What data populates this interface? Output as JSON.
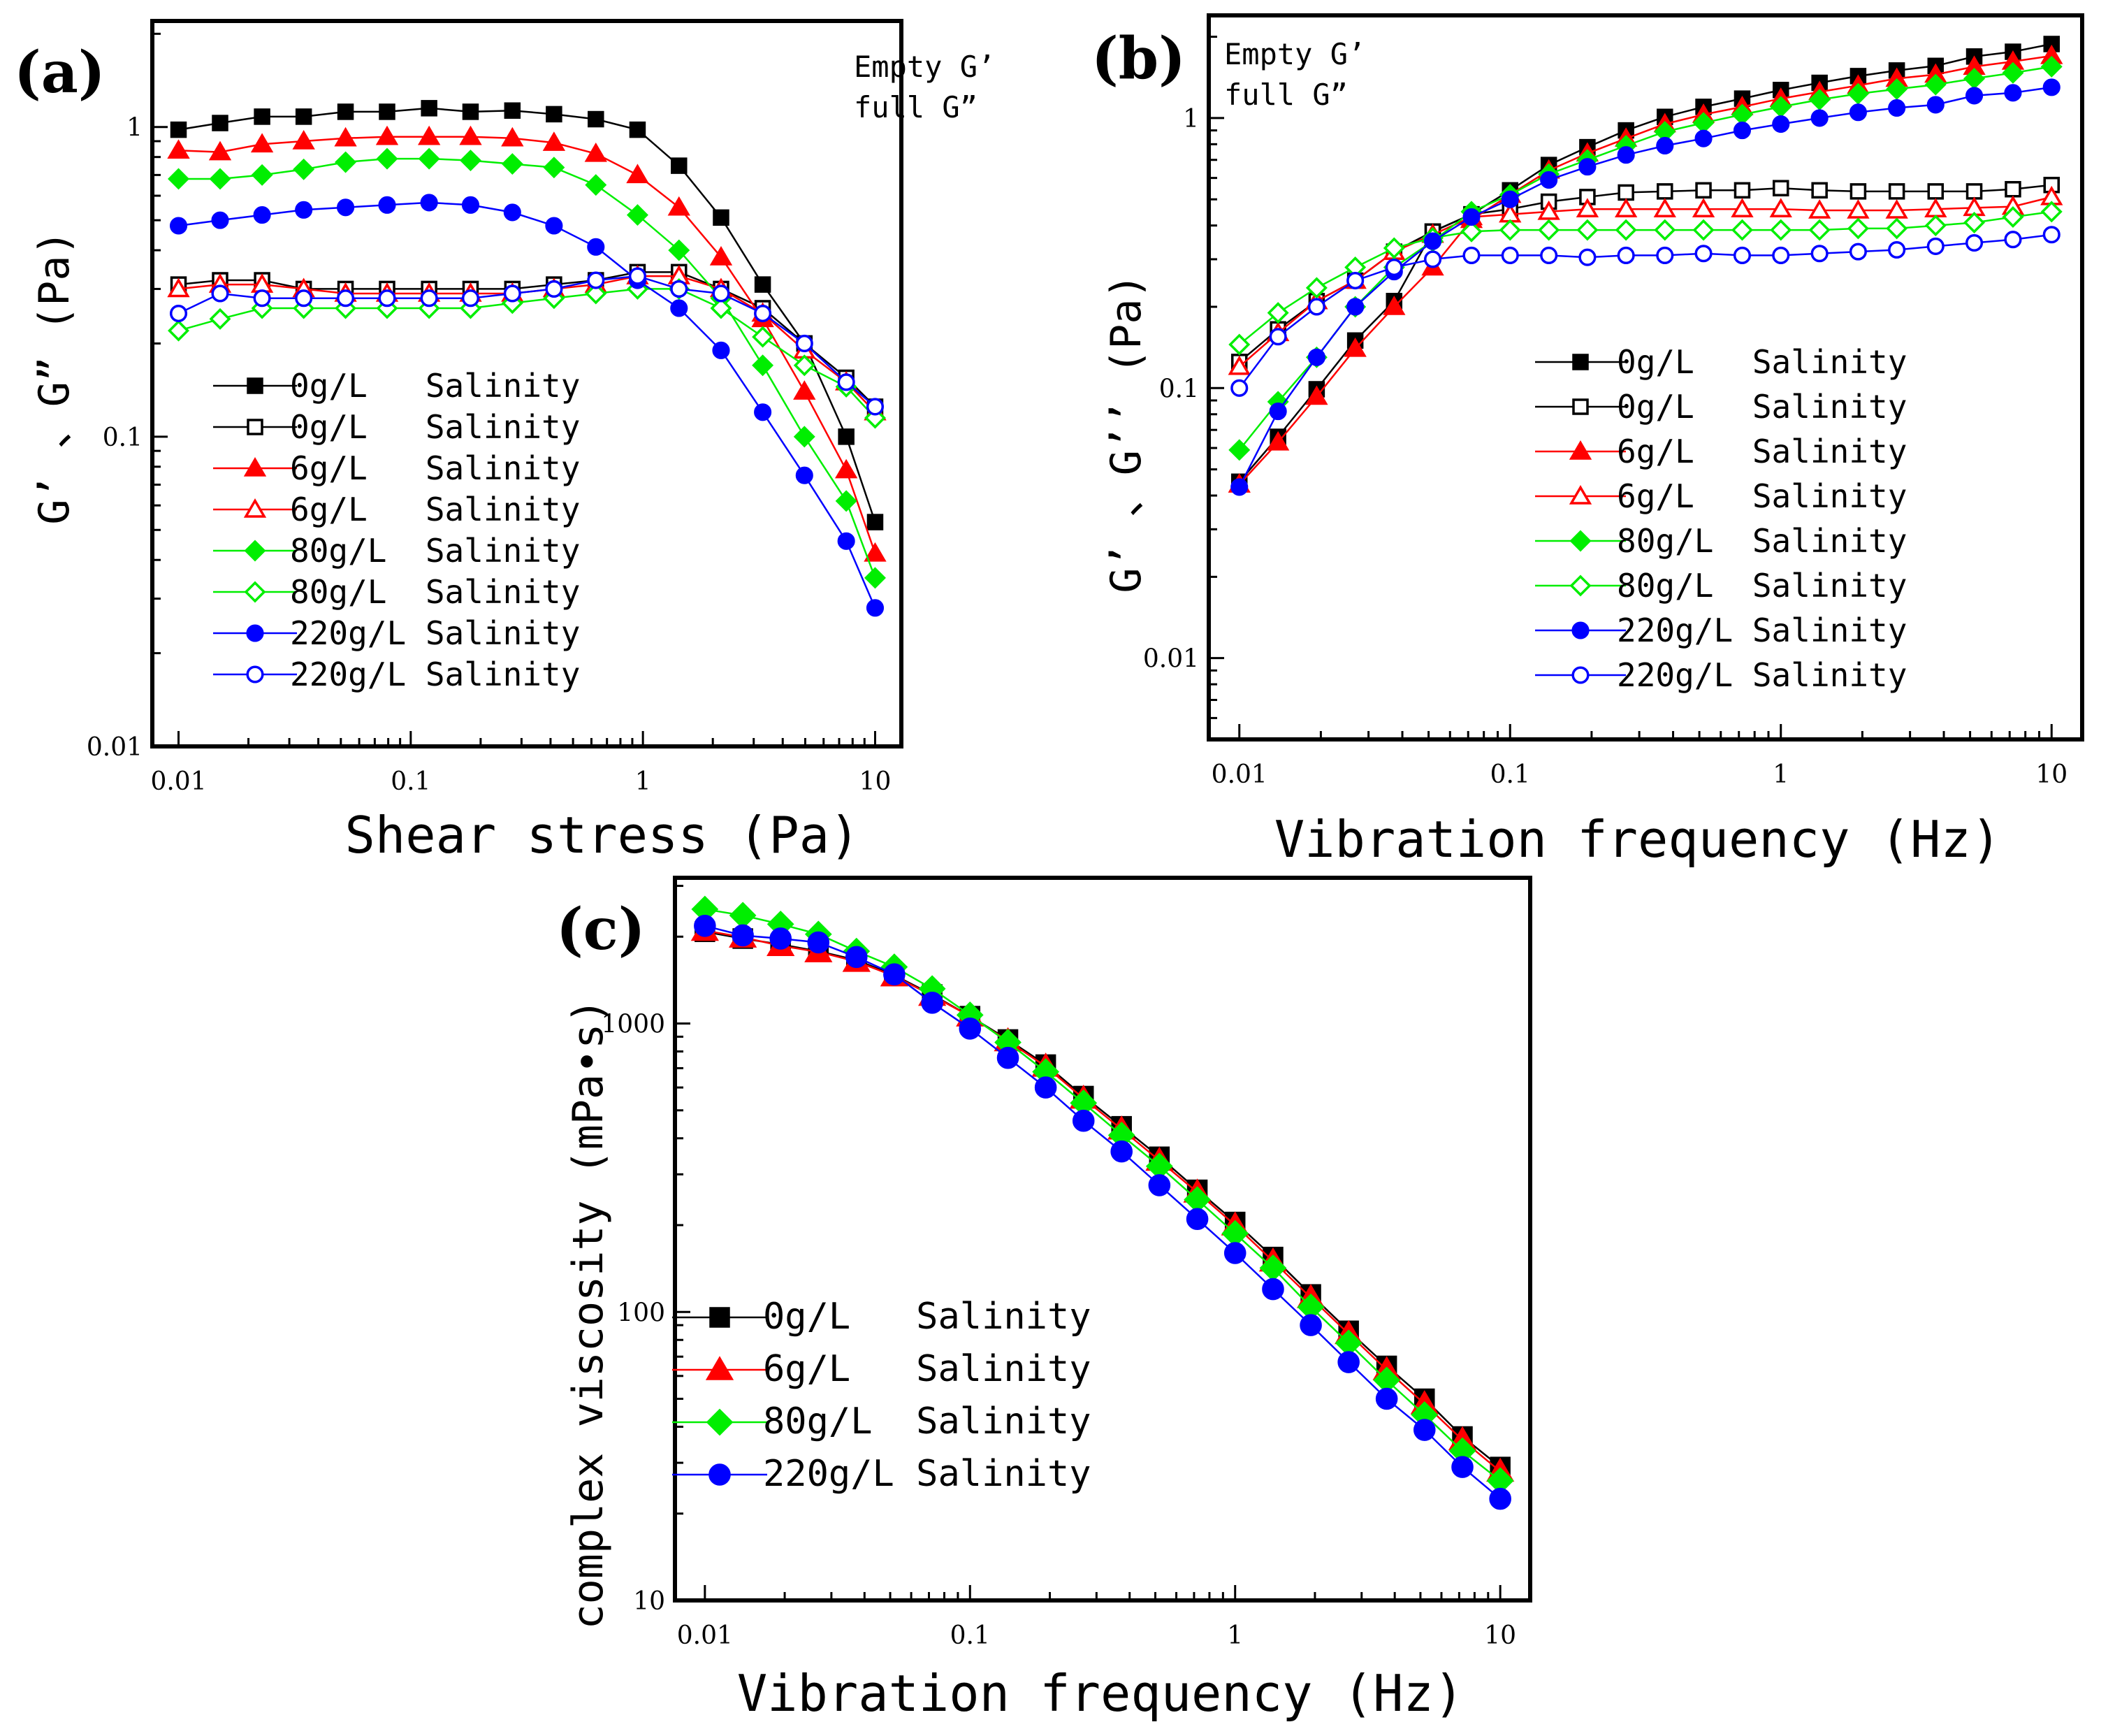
{
  "panels": {
    "a": {
      "label": "(a)",
      "label_color": "#ff0000",
      "annotation": [
        "Empty G’",
        "full  G”"
      ],
      "chart_data": {
        "type": "line",
        "x_scale": "log",
        "y_scale": "log",
        "xlim": [
          0.01,
          10
        ],
        "ylim": [
          0.01,
          2.2
        ],
        "xlabel": "Shear stress (Pa)",
        "ylabel": "G’ 、G” (Pa)",
        "xticks": [
          0.01,
          0.1,
          1,
          10
        ],
        "xtick_labels": [
          "0.01",
          "0.1",
          "1",
          "10"
        ],
        "yticks": [
          0.01,
          0.1,
          1
        ],
        "ytick_labels": [
          "0.01",
          "0.1",
          "1"
        ],
        "x": [
          0.01,
          0.0151,
          0.0229,
          0.0346,
          0.0524,
          0.0791,
          0.12,
          0.181,
          0.274,
          0.414,
          0.627,
          0.948,
          1.43,
          2.17,
          3.28,
          4.96,
          7.51,
          10
        ],
        "series": [
          {
            "name": "0g/L   Salinity",
            "color": "#000000",
            "marker": "square",
            "filled": true,
            "values": [
              0.98,
              1.03,
              1.08,
              1.08,
              1.12,
              1.12,
              1.15,
              1.12,
              1.13,
              1.1,
              1.06,
              0.98,
              0.75,
              0.51,
              0.31,
              0.2,
              0.1,
              0.053
            ]
          },
          {
            "name": "0g/L   Salinity",
            "color": "#000000",
            "marker": "square",
            "filled": false,
            "values": [
              0.31,
              0.32,
              0.32,
              0.3,
              0.3,
              0.3,
              0.3,
              0.3,
              0.3,
              0.31,
              0.32,
              0.34,
              0.34,
              0.3,
              0.26,
              0.2,
              0.155,
              0.125
            ]
          },
          {
            "name": "6g/L   Salinity",
            "color": "#ff0000",
            "marker": "triangle",
            "filled": true,
            "values": [
              0.84,
              0.83,
              0.88,
              0.9,
              0.92,
              0.93,
              0.93,
              0.93,
              0.92,
              0.89,
              0.82,
              0.7,
              0.55,
              0.38,
              0.24,
              0.14,
              0.078,
              0.042
            ]
          },
          {
            "name": "6g/L   Salinity",
            "color": "#ff0000",
            "marker": "triangle",
            "filled": false,
            "values": [
              0.3,
              0.31,
              0.31,
              0.3,
              0.29,
              0.29,
              0.29,
              0.29,
              0.29,
              0.3,
              0.31,
              0.33,
              0.33,
              0.3,
              0.25,
              0.19,
              0.15,
              0.12
            ]
          },
          {
            "name": "80g/L  Salinity",
            "color": "#00ee00",
            "marker": "diamond",
            "filled": true,
            "values": [
              0.68,
              0.68,
              0.7,
              0.73,
              0.77,
              0.79,
              0.79,
              0.78,
              0.76,
              0.74,
              0.65,
              0.52,
              0.4,
              0.28,
              0.17,
              0.1,
              0.062,
              0.035
            ]
          },
          {
            "name": "80g/L  Salinity",
            "color": "#00ee00",
            "marker": "diamond",
            "filled": false,
            "values": [
              0.22,
              0.24,
              0.26,
              0.26,
              0.26,
              0.26,
              0.26,
              0.26,
              0.27,
              0.28,
              0.29,
              0.3,
              0.3,
              0.26,
              0.21,
              0.17,
              0.145,
              0.115
            ]
          },
          {
            "name": "220g/L Salinity",
            "color": "#0000ff",
            "marker": "circle",
            "filled": true,
            "values": [
              0.48,
              0.5,
              0.52,
              0.54,
              0.55,
              0.56,
              0.57,
              0.56,
              0.53,
              0.48,
              0.41,
              0.32,
              0.26,
              0.19,
              0.12,
              0.075,
              0.046,
              0.028
            ]
          },
          {
            "name": "220g/L Salinity",
            "color": "#0000ff",
            "marker": "circle",
            "filled": false,
            "values": [
              0.25,
              0.29,
              0.28,
              0.28,
              0.28,
              0.28,
              0.28,
              0.28,
              0.29,
              0.3,
              0.32,
              0.33,
              0.3,
              0.29,
              0.25,
              0.2,
              0.15,
              0.125
            ]
          }
        ]
      }
    },
    "b": {
      "label": "(b)",
      "label_color": "#ff0000",
      "annotation": [
        "Empty G’",
        "full  G”"
      ],
      "chart_data": {
        "type": "line",
        "x_scale": "log",
        "y_scale": "log",
        "xlim": [
          0.01,
          10
        ],
        "ylim": [
          0.005,
          2.4
        ],
        "xlabel": "Vibration frequency (Hz)",
        "ylabel": "G’ 、G’’ (Pa)",
        "xticks": [
          0.01,
          0.1,
          1,
          10
        ],
        "xtick_labels": [
          "0.01",
          "0.1",
          "1",
          "10"
        ],
        "yticks": [
          0.01,
          0.1,
          1
        ],
        "ytick_labels": [
          "0.01",
          "0.1",
          "1"
        ],
        "x": [
          0.01,
          0.0139,
          0.0193,
          0.0268,
          0.0373,
          0.0518,
          0.072,
          0.1,
          0.139,
          0.193,
          0.268,
          0.373,
          0.518,
          0.72,
          1,
          1.39,
          1.93,
          2.68,
          3.73,
          5.18,
          7.2,
          10
        ],
        "series": [
          {
            "name": "0g/L   Salinity",
            "color": "#000000",
            "marker": "square",
            "filled": true,
            "values": [
              0.045,
              0.066,
              0.099,
              0.15,
              0.21,
              0.38,
              0.44,
              0.54,
              0.67,
              0.78,
              0.9,
              1.01,
              1.1,
              1.18,
              1.27,
              1.35,
              1.43,
              1.5,
              1.56,
              1.69,
              1.76,
              1.88
            ]
          },
          {
            "name": "0g/L   Salinity",
            "color": "#000000",
            "marker": "square",
            "filled": false,
            "values": [
              0.125,
              0.165,
              0.21,
              0.25,
              0.32,
              0.38,
              0.44,
              0.46,
              0.49,
              0.51,
              0.53,
              0.535,
              0.54,
              0.54,
              0.55,
              0.54,
              0.535,
              0.535,
              0.535,
              0.535,
              0.545,
              0.565
            ]
          },
          {
            "name": "6g/L   Salinity",
            "color": "#ff0000",
            "marker": "triangle",
            "filled": true,
            "values": [
              0.044,
              0.063,
              0.093,
              0.14,
              0.2,
              0.28,
              0.42,
              0.52,
              0.64,
              0.74,
              0.84,
              0.95,
              1.03,
              1.1,
              1.18,
              1.25,
              1.32,
              1.4,
              1.45,
              1.55,
              1.62,
              1.7
            ]
          },
          {
            "name": "6g/L   Salinity",
            "color": "#ff0000",
            "marker": "triangle",
            "filled": false,
            "values": [
              0.12,
              0.16,
              0.21,
              0.25,
              0.32,
              0.37,
              0.43,
              0.44,
              0.45,
              0.46,
              0.46,
              0.46,
              0.46,
              0.46,
              0.46,
              0.455,
              0.455,
              0.455,
              0.46,
              0.465,
              0.47,
              0.51
            ]
          },
          {
            "name": "80g/L  Salinity",
            "color": "#00ee00",
            "marker": "diamond",
            "filled": true,
            "values": [
              0.059,
              0.089,
              0.13,
              0.2,
              0.28,
              0.35,
              0.45,
              0.52,
              0.62,
              0.7,
              0.79,
              0.89,
              0.96,
              1.03,
              1.1,
              1.17,
              1.23,
              1.28,
              1.33,
              1.4,
              1.47,
              1.55
            ]
          },
          {
            "name": "80g/L  Salinity",
            "color": "#00ee00",
            "marker": "diamond",
            "filled": false,
            "values": [
              0.145,
              0.19,
              0.235,
              0.28,
              0.33,
              0.36,
              0.38,
              0.385,
              0.385,
              0.385,
              0.385,
              0.385,
              0.385,
              0.385,
              0.385,
              0.385,
              0.39,
              0.39,
              0.4,
              0.41,
              0.43,
              0.45
            ]
          },
          {
            "name": "220g/L Salinity",
            "color": "#0000ff",
            "marker": "circle",
            "filled": true,
            "values": [
              0.043,
              0.082,
              0.13,
              0.2,
              0.27,
              0.35,
              0.43,
              0.5,
              0.59,
              0.66,
              0.73,
              0.79,
              0.84,
              0.9,
              0.95,
              1.0,
              1.05,
              1.09,
              1.12,
              1.21,
              1.24,
              1.3
            ]
          },
          {
            "name": "220g/L Salinity",
            "color": "#0000ff",
            "marker": "circle",
            "filled": false,
            "values": [
              0.1,
              0.155,
              0.2,
              0.25,
              0.28,
              0.3,
              0.31,
              0.31,
              0.31,
              0.305,
              0.31,
              0.31,
              0.315,
              0.31,
              0.31,
              0.315,
              0.32,
              0.325,
              0.335,
              0.345,
              0.355,
              0.37
            ]
          }
        ]
      }
    },
    "c": {
      "label": "(c)",
      "label_color": "#ff0000",
      "chart_data": {
        "type": "line",
        "x_scale": "log",
        "y_scale": "log",
        "xlim": [
          0.01,
          10
        ],
        "ylim": [
          10,
          3200
        ],
        "xlabel": "Vibration frequency (Hz)",
        "ylabel": "complex viscosity (mPa•s)",
        "xticks": [
          0.01,
          0.1,
          1,
          10
        ],
        "xtick_labels": [
          "0.01",
          "0.1",
          "1",
          "10"
        ],
        "yticks": [
          10,
          100,
          1000
        ],
        "ytick_labels": [
          "10",
          "100",
          "1000"
        ],
        "x": [
          0.01,
          0.0139,
          0.0193,
          0.0268,
          0.0373,
          0.0518,
          0.072,
          0.1,
          0.139,
          0.193,
          0.268,
          0.373,
          0.518,
          0.72,
          1,
          1.39,
          1.93,
          2.68,
          3.73,
          5.18,
          7.2,
          10
        ],
        "series": [
          {
            "name": "0g/L   Salinity",
            "color": "#000000",
            "marker": "square",
            "filled": true,
            "values": [
              2080,
              1970,
              1880,
              1780,
              1660,
              1470,
              1260,
              1060,
              880,
              720,
              560,
              440,
              345,
              265,
              205,
              155,
              115,
              86,
              65,
              50,
              37,
              29
            ]
          },
          {
            "name": "6g/L   Salinity",
            "color": "#ff0000",
            "marker": "triangle",
            "filled": true,
            "values": [
              2100,
              1990,
              1860,
              1770,
              1640,
              1460,
              1250,
              1060,
              870,
              710,
              550,
              430,
              335,
              260,
              200,
              150,
              112,
              84,
              63,
              48,
              36,
              28
            ]
          },
          {
            "name": "80g/L  Salinity",
            "color": "#00ee00",
            "marker": "diamond",
            "filled": true,
            "values": [
              2490,
              2370,
              2210,
              2040,
              1780,
              1570,
              1320,
              1070,
              860,
              680,
              530,
              410,
              320,
              245,
              187,
              142,
              104,
              78,
              58,
              44,
              33,
              26
            ]
          },
          {
            "name": "220g/L Salinity",
            "color": "#0000ff",
            "marker": "circle",
            "filled": true,
            "values": [
              2180,
              2020,
              1970,
              1910,
              1700,
              1480,
              1180,
              960,
              760,
              600,
              460,
              360,
              275,
              210,
              160,
              120,
              90,
              67,
              50,
              39,
              29,
              22.5
            ]
          }
        ]
      }
    }
  }
}
